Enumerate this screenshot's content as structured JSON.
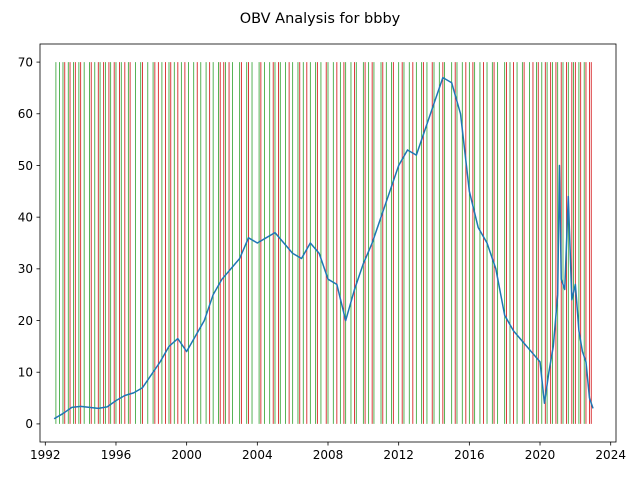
{
  "chart_data": {
    "type": "line",
    "title": "OBV Analysis for bbby",
    "xlabel": "",
    "ylabel": "",
    "xlim": [
      1991.7,
      2024.3
    ],
    "ylim": [
      -3.5,
      73.5
    ],
    "x_ticks": [
      1992,
      1996,
      2000,
      2004,
      2008,
      2012,
      2016,
      2020,
      2024
    ],
    "y_ticks": [
      0,
      10,
      20,
      30,
      40,
      50,
      60,
      70
    ],
    "grid": false,
    "legend": "none",
    "series": [
      {
        "color": "#1f77b4",
        "x": [
          1992.5,
          1993.0,
          1993.5,
          1994.0,
          1994.5,
          1995.0,
          1995.5,
          1996.0,
          1996.5,
          1997.0,
          1997.5,
          1998.0,
          1998.5,
          1999.0,
          1999.5,
          2000.0,
          2000.5,
          2001.0,
          2001.5,
          2002.0,
          2002.5,
          2003.0,
          2003.5,
          2004.0,
          2004.5,
          2005.0,
          2005.5,
          2006.0,
          2006.5,
          2007.0,
          2007.5,
          2008.0,
          2008.5,
          2009.0,
          2009.5,
          2010.0,
          2010.5,
          2011.0,
          2011.5,
          2012.0,
          2012.5,
          2013.0,
          2013.5,
          2014.0,
          2014.5,
          2015.0,
          2015.5,
          2016.0,
          2016.5,
          2017.0,
          2017.5,
          2018.0,
          2018.5,
          2019.0,
          2019.5,
          2020.0,
          2020.25,
          2020.5,
          2020.75,
          2021.0,
          2021.1,
          2021.2,
          2021.4,
          2021.6,
          2021.8,
          2022.0,
          2022.2,
          2022.4,
          2022.6,
          2022.8,
          2023.0
        ],
        "y": [
          1.0,
          2.0,
          3.2,
          3.4,
          3.2,
          3.0,
          3.3,
          4.5,
          5.5,
          6.0,
          7.0,
          9.5,
          12.0,
          15.0,
          16.5,
          14.0,
          17.0,
          20.0,
          25.0,
          28.0,
          30.0,
          32.0,
          36.0,
          35.0,
          36.0,
          37.0,
          35.0,
          33.0,
          32.0,
          35.0,
          33.0,
          28.0,
          27.0,
          20.0,
          26.0,
          31.0,
          35.0,
          40.0,
          45.0,
          50.0,
          53.0,
          52.0,
          57.0,
          62.0,
          67.0,
          66.0,
          60.0,
          45.0,
          38.0,
          35.0,
          30.0,
          21.0,
          18.0,
          16.0,
          14.0,
          12.0,
          4.0,
          10.0,
          15.0,
          25.0,
          50.0,
          28.0,
          26.0,
          44.0,
          24.0,
          27.0,
          18.0,
          14.0,
          12.0,
          5.0,
          3.0
        ]
      }
    ],
    "signals": {
      "buy_color": "#2ca02c",
      "sell_color": "#d62728",
      "level": 70,
      "buy_x": [
        1992.6,
        1992.8,
        1993.0,
        1993.3,
        1993.6,
        1993.9,
        1994.2,
        1994.5,
        1994.8,
        1995.1,
        1995.4,
        1995.7,
        1996.0,
        1996.3,
        1996.7,
        1997.1,
        1997.4,
        1997.8,
        1998.1,
        1998.6,
        1999.0,
        1999.3,
        1999.7,
        2000.1,
        2000.4,
        2000.8,
        2001.1,
        2001.5,
        2001.8,
        2002.2,
        2002.6,
        2003.0,
        2003.4,
        2003.7,
        2004.1,
        2004.4,
        2004.7,
        2005.0,
        2005.3,
        2005.6,
        2006.0,
        2006.3,
        2006.6,
        2007.0,
        2007.3,
        2007.6,
        2008.0,
        2008.3,
        2008.7,
        2009.0,
        2009.3,
        2009.6,
        2010.0,
        2010.3,
        2010.6,
        2011.0,
        2011.3,
        2011.6,
        2012.0,
        2012.3,
        2012.6,
        2013.0,
        2013.3,
        2013.6,
        2014.0,
        2014.3,
        2014.6,
        2015.0,
        2015.3,
        2015.6,
        2016.0,
        2016.3,
        2016.6,
        2017.0,
        2017.3,
        2017.6,
        2018.0,
        2018.3,
        2018.7,
        2019.0,
        2019.4,
        2019.8,
        2020.1,
        2020.4,
        2020.7,
        2021.0,
        2021.3,
        2021.6,
        2021.9,
        2022.2,
        2022.5
      ],
      "sell_x": [
        1993.1,
        1993.4,
        1993.7,
        1994.0,
        1994.6,
        1995.0,
        1995.3,
        1995.6,
        1995.9,
        1996.2,
        1996.5,
        1996.8,
        1997.5,
        1998.2,
        1998.4,
        1998.8,
        1999.1,
        1999.5,
        1999.9,
        2000.6,
        2001.3,
        2001.9,
        2002.1,
        2002.4,
        2003.1,
        2003.5,
        2004.2,
        2004.9,
        2005.2,
        2005.8,
        2006.4,
        2006.8,
        2007.4,
        2007.9,
        2008.5,
        2008.9,
        2009.5,
        2010.1,
        2010.5,
        2011.1,
        2011.7,
        2012.2,
        2012.8,
        2013.4,
        2013.9,
        2014.5,
        2015.2,
        2015.8,
        2016.2,
        2016.8,
        2017.4,
        2018.1,
        2018.5,
        2019.1,
        2019.6,
        2019.9,
        2020.3,
        2020.6,
        2020.9,
        2021.2,
        2021.5,
        2021.8,
        2022.0,
        2022.3,
        2022.6,
        2022.8,
        2022.9
      ]
    }
  }
}
